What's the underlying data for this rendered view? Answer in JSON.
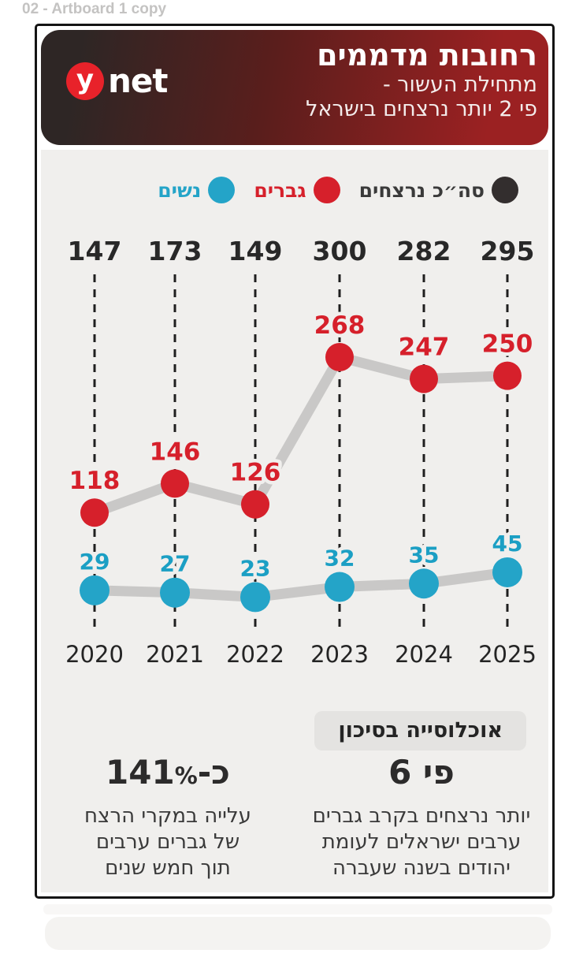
{
  "artboard_label": "02 - Artboard 1 copy",
  "header": {
    "title": "רחובות מדממים",
    "subtitle_line1": "מתחילת העשור -",
    "subtitle_line2": "פי 2 יותר נרצחים בישראל",
    "logo": {
      "y": "y",
      "net": "net"
    },
    "colors": {
      "gradient_dark": "#2e2625",
      "gradient_red": "#9b2122",
      "logo_circle": "#e8222a"
    }
  },
  "legend": {
    "items": [
      {
        "id": "total",
        "label": "סה״כ נרצחים",
        "color": "#332e2e"
      },
      {
        "id": "men",
        "label": "גברים",
        "color": "#d6202b"
      },
      {
        "id": "women",
        "label": "נשים",
        "color": "#24a4c8"
      }
    ]
  },
  "chart_data": {
    "type": "line",
    "x": [
      "2020",
      "2021",
      "2022",
      "2023",
      "2024",
      "2025"
    ],
    "series": [
      {
        "name": "סה״כ נרצחים",
        "role": "totals",
        "values": [
          147,
          173,
          149,
          300,
          282,
          295
        ],
        "color": "#282828"
      },
      {
        "name": "גברים",
        "role": "men",
        "values": [
          118,
          146,
          126,
          268,
          247,
          250
        ],
        "color": "#d6202b"
      },
      {
        "name": "נשים",
        "role": "women",
        "values": [
          29,
          27,
          23,
          32,
          35,
          45
        ],
        "color": "#24a4c8"
      }
    ],
    "title": "רחובות מדממים",
    "xlabel": "",
    "ylabel": "",
    "legend_position": "top-right",
    "grid": "dashed-vertical-guides",
    "connector_color": "#c9c8c7",
    "guide_color": "#1f1f1f",
    "background": "#f0efed"
  },
  "risk_section": {
    "badge": "אוכלוסייה בסיכון",
    "stats": [
      {
        "id": "times-six",
        "big": "פי 6",
        "lines": [
          "יותר נרצחים בקרב גברים",
          "ערבים ישראלים לעומת",
          "יהודים בשנה שעברה"
        ]
      },
      {
        "id": "pct-141",
        "big_prefix": "כ-",
        "big_value": "141",
        "big_unit": "%",
        "lines": [
          "עלייה במקרי הרצח",
          "של גברים ערבים",
          "תוך חמש שנים"
        ]
      }
    ]
  }
}
